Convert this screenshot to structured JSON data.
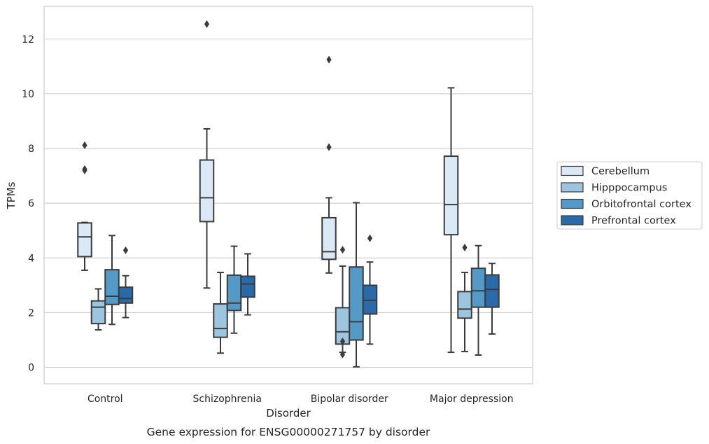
{
  "chart_data": {
    "type": "box",
    "caption": "Gene expression for ENSG00000271757 by disorder",
    "xlabel": "Disorder",
    "ylabel": "TPMs",
    "ylim": [
      -0.6,
      13.2
    ],
    "yticks": [
      0,
      2,
      4,
      6,
      8,
      10,
      12
    ],
    "grid": "horizontal",
    "legend_placement": "right",
    "categories": [
      "Control",
      "Schizophrenia",
      "Bipolar disorder",
      "Major depression"
    ],
    "series": [
      {
        "name": "Cerebellum",
        "color": "#dbe8f5",
        "boxes": [
          {
            "whislo": 3.55,
            "q1": 4.05,
            "med": 4.77,
            "q3": 5.28,
            "whishi": 5.3,
            "fliers": [
              7.2,
              7.25,
              8.12
            ]
          },
          {
            "whislo": 2.9,
            "q1": 5.33,
            "med": 6.2,
            "q3": 7.58,
            "whishi": 8.72,
            "fliers": [
              12.55
            ]
          },
          {
            "whislo": 3.45,
            "q1": 3.95,
            "med": 4.23,
            "q3": 5.47,
            "whishi": 6.2,
            "fliers": [
              8.05,
              11.25
            ]
          },
          {
            "whislo": 0.55,
            "q1": 4.85,
            "med": 5.95,
            "q3": 7.72,
            "whishi": 10.22,
            "fliers": []
          }
        ]
      },
      {
        "name": "Hipppocampus",
        "color": "#9dc5df",
        "boxes": [
          {
            "whislo": 1.37,
            "q1": 1.6,
            "med": 2.2,
            "q3": 2.43,
            "whishi": 2.87,
            "fliers": []
          },
          {
            "whislo": 0.52,
            "q1": 1.1,
            "med": 1.42,
            "q3": 2.32,
            "whishi": 3.47,
            "fliers": []
          },
          {
            "whislo": 0.55,
            "q1": 0.85,
            "med": 1.3,
            "q3": 2.18,
            "whishi": 3.7,
            "fliers": [
              0.47,
              0.95,
              4.3
            ]
          },
          {
            "whislo": 0.58,
            "q1": 1.8,
            "med": 2.13,
            "q3": 2.77,
            "whishi": 3.47,
            "fliers": [
              4.38
            ]
          }
        ]
      },
      {
        "name": "Orbitofrontal cortex",
        "color": "#5599c6",
        "boxes": [
          {
            "whislo": 1.57,
            "q1": 2.3,
            "med": 2.6,
            "q3": 3.57,
            "whishi": 4.82,
            "fliers": []
          },
          {
            "whislo": 1.25,
            "q1": 2.08,
            "med": 2.35,
            "q3": 3.37,
            "whishi": 4.43,
            "fliers": []
          },
          {
            "whislo": 0.02,
            "q1": 1.0,
            "med": 1.67,
            "q3": 3.67,
            "whishi": 6.02,
            "fliers": []
          },
          {
            "whislo": 0.45,
            "q1": 2.2,
            "med": 2.8,
            "q3": 3.62,
            "whishi": 4.45,
            "fliers": []
          }
        ]
      },
      {
        "name": "Prefrontal cortex",
        "color": "#2b6aa8",
        "boxes": [
          {
            "whislo": 1.82,
            "q1": 2.35,
            "med": 2.52,
            "q3": 2.93,
            "whishi": 3.35,
            "fliers": [
              4.28
            ]
          },
          {
            "whislo": 1.92,
            "q1": 2.57,
            "med": 3.05,
            "q3": 3.33,
            "whishi": 4.15,
            "fliers": []
          },
          {
            "whislo": 0.85,
            "q1": 1.95,
            "med": 2.45,
            "q3": 3.0,
            "whishi": 3.85,
            "fliers": [
              4.72
            ]
          },
          {
            "whislo": 1.22,
            "q1": 2.2,
            "med": 2.85,
            "q3": 3.38,
            "whishi": 3.8,
            "fliers": []
          }
        ]
      }
    ]
  }
}
